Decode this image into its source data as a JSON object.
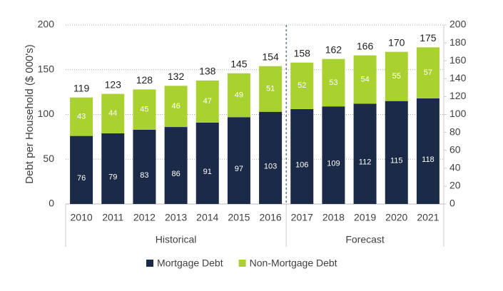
{
  "chart_data": {
    "type": "stacked_bar",
    "y_label": "Debt per Household ($ 000's)",
    "categories": [
      "2010",
      "2011",
      "2012",
      "2013",
      "2014",
      "2015",
      "2016",
      "2017",
      "2018",
      "2019",
      "2020",
      "2021"
    ],
    "category_group": [
      "Historical",
      "Historical",
      "Historical",
      "Historical",
      "Historical",
      "Historical",
      "Historical",
      "Forecast",
      "Forecast",
      "Forecast",
      "Forecast",
      "Forecast"
    ],
    "series": [
      {
        "name": "Mortgage Debt",
        "color": "#1b2a47",
        "values": [
          76,
          79,
          83,
          86,
          91,
          97,
          103,
          106,
          109,
          112,
          115,
          118
        ]
      },
      {
        "name": "Non-Mortgage Debt",
        "color": "#a9d130",
        "values": [
          43,
          44,
          45,
          46,
          47,
          49,
          51,
          52,
          53,
          54,
          55,
          57
        ]
      }
    ],
    "totals": [
      119,
      123,
      128,
      132,
      138,
      145,
      154,
      158,
      162,
      166,
      170,
      175
    ],
    "ylim": [
      0,
      200
    ],
    "yticks": [
      0,
      50,
      100,
      150,
      200
    ],
    "y2lim": [
      0,
      200
    ],
    "y2ticks": [
      0,
      20,
      40,
      60,
      80,
      100,
      120,
      140,
      160,
      180,
      200
    ],
    "grid": true,
    "legend": "bottom"
  }
}
